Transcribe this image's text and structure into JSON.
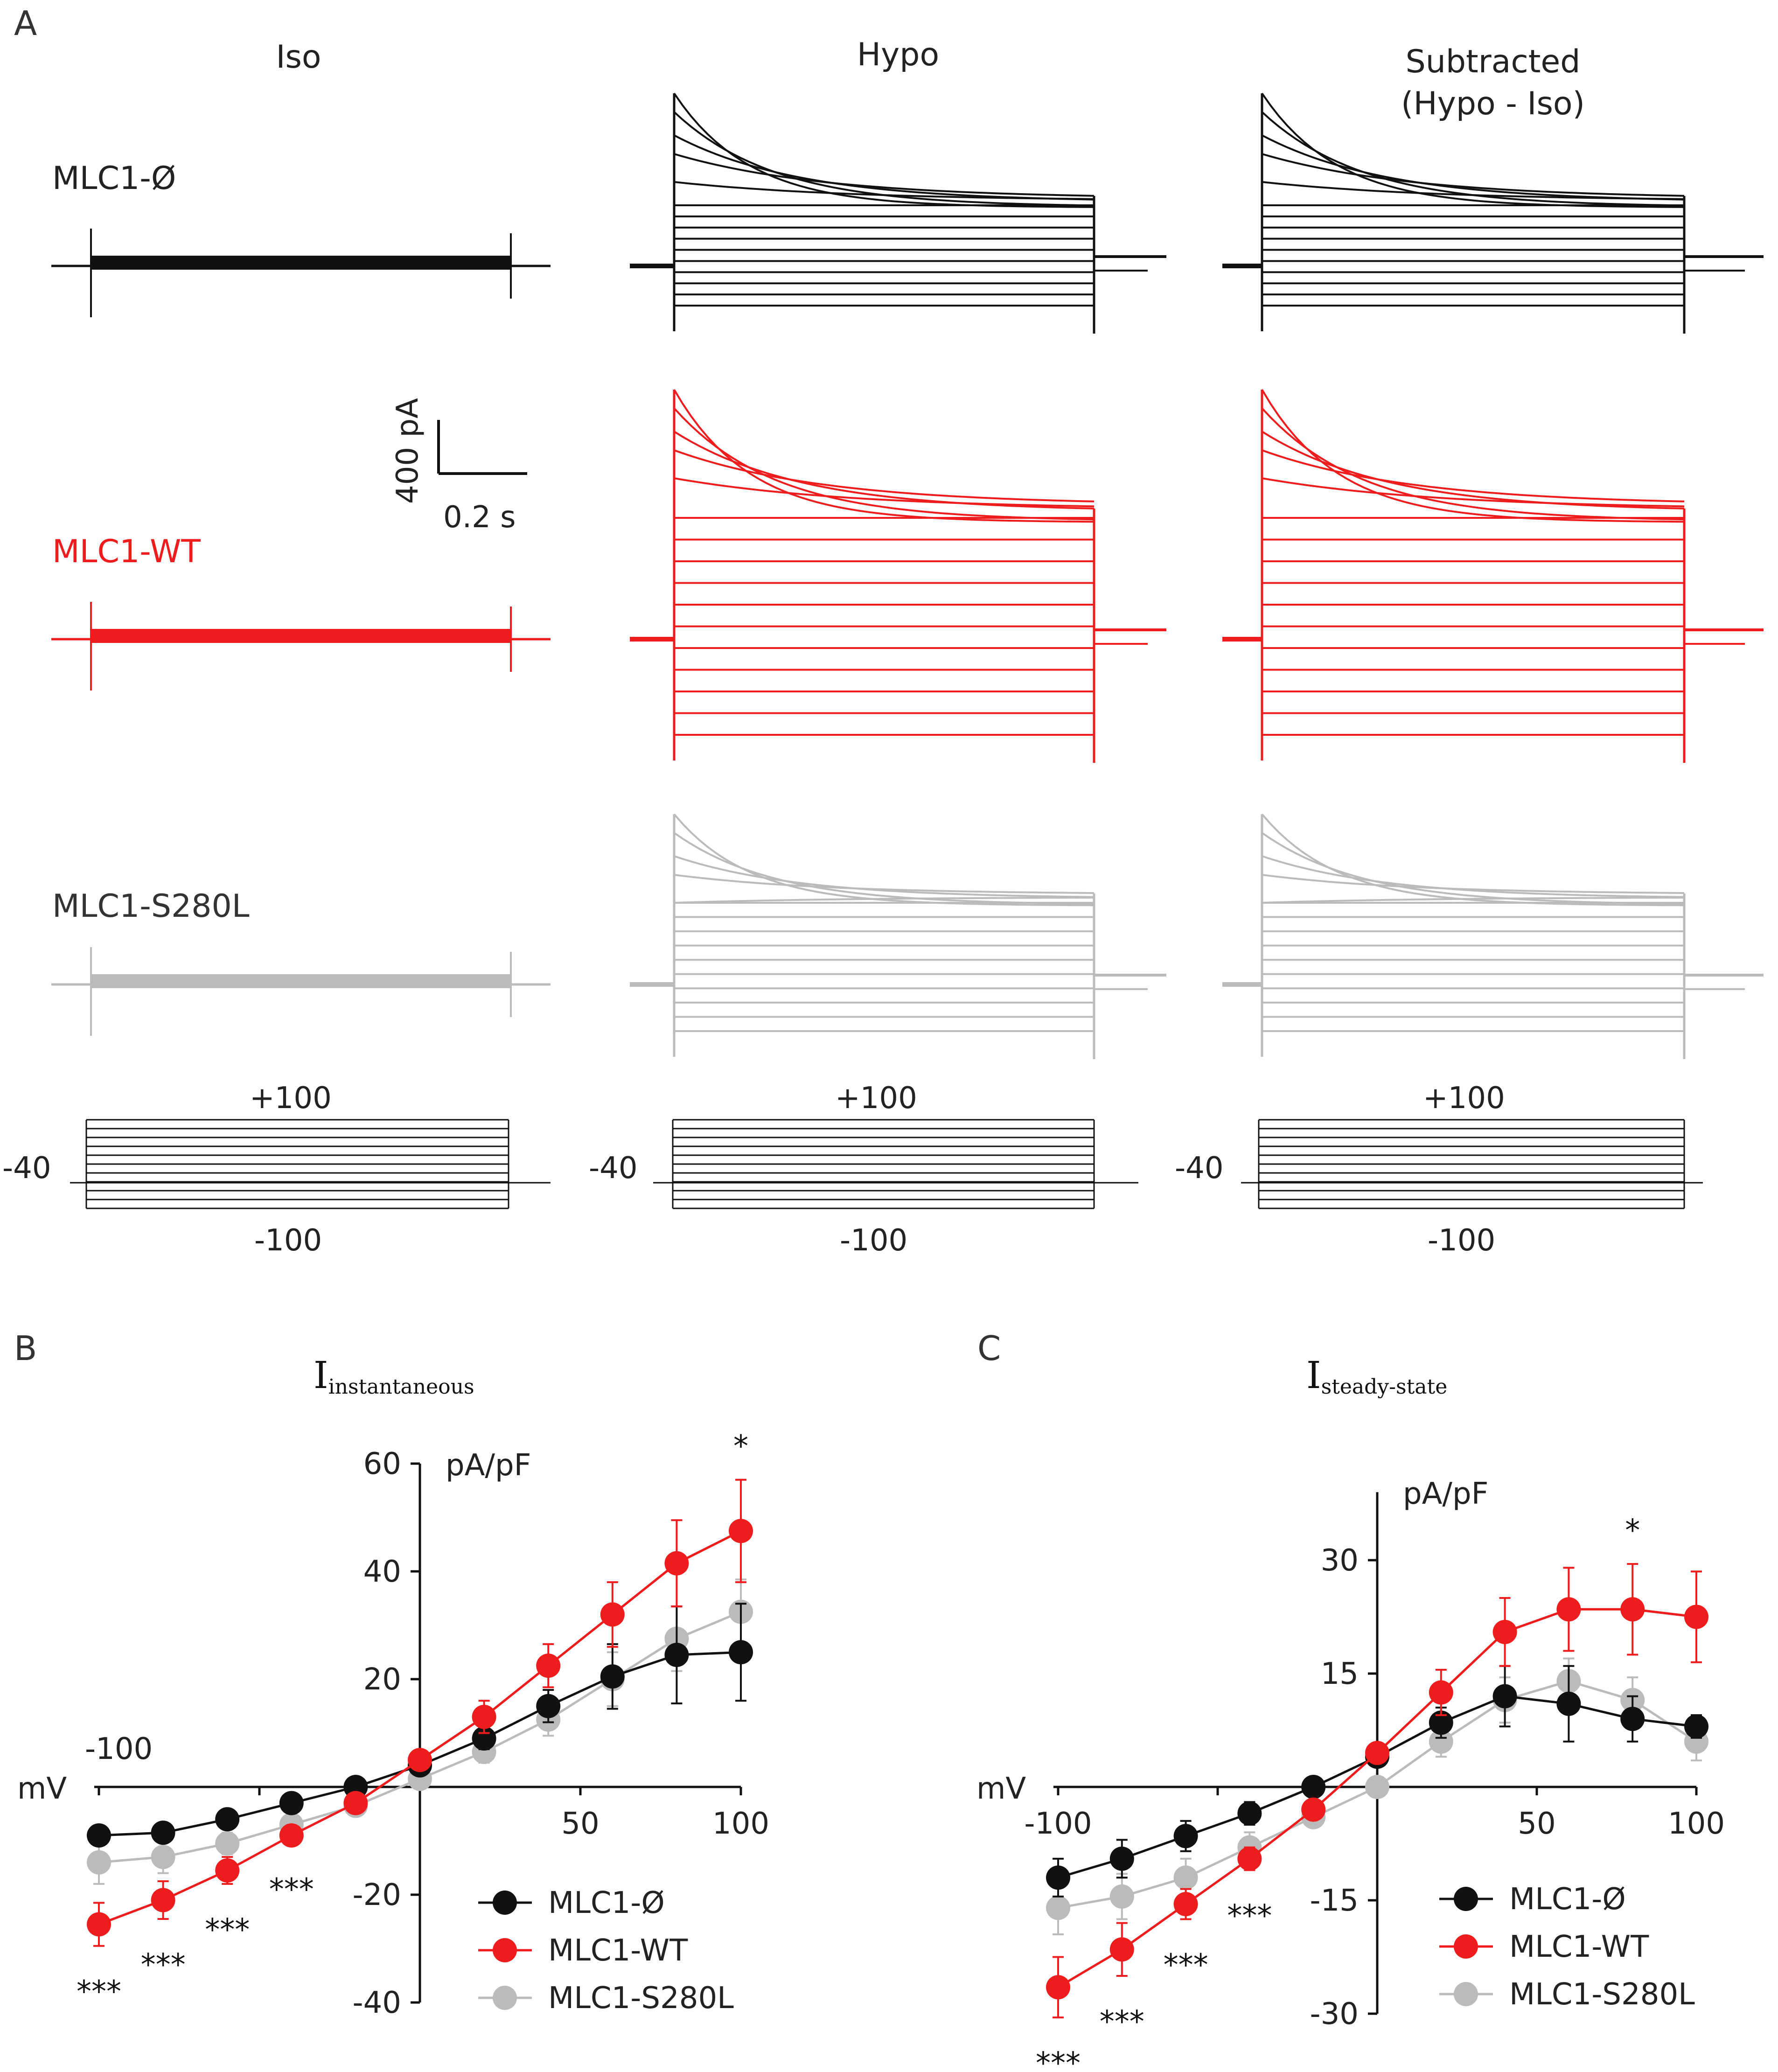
{
  "panels": {
    "A": "A",
    "B": "B",
    "C": "C"
  },
  "columns": [
    "Iso",
    "Hypo",
    "Subtracted",
    "(Hypo - Iso)"
  ],
  "rows": [
    {
      "label": "MLC1-Ø",
      "color": "#111111"
    },
    {
      "label": "MLC1-WT",
      "color": "#ee1c1c"
    },
    {
      "label": "MLC1-S280L",
      "color": "#bbbbbb"
    }
  ],
  "scale_bar": {
    "current": "400 pA",
    "time": "0.2 s"
  },
  "protocol": {
    "top": "+100",
    "bottom": "-100",
    "hold": "-40"
  },
  "colors": {
    "black": "#111111",
    "red": "#ee1c1c",
    "gray": "#bbbbbb"
  },
  "chart_data": [
    {
      "type": "line",
      "title": "I",
      "subtitle": "instantaneous",
      "ylabel": "pA/pF",
      "xlabel": "mV",
      "x_axis_label": "-100",
      "xlim": [
        -100,
        100
      ],
      "ylim": [
        -40,
        60
      ],
      "xticks": [
        50,
        100
      ],
      "yticks": [
        60,
        40,
        20,
        -20,
        -40
      ],
      "x": [
        -100,
        -80,
        -60,
        -40,
        -20,
        0,
        20,
        40,
        60,
        80,
        100
      ],
      "series": [
        {
          "name": "MLC1-Ø",
          "color": "#111111",
          "values": [
            -9,
            -8.5,
            -6,
            -3,
            0,
            4,
            9,
            15,
            20.5,
            24.5,
            25
          ],
          "err": [
            1.5,
            1.5,
            1.5,
            1.5,
            1,
            1,
            2,
            3,
            6,
            9,
            9
          ]
        },
        {
          "name": "MLC1-WT",
          "color": "#ee1c1c",
          "values": [
            -25.5,
            -21,
            -15.5,
            -9,
            -3,
            5,
            13,
            22.5,
            32,
            41.5,
            47.5
          ],
          "err": [
            4,
            3.5,
            2.5,
            1.5,
            1,
            1,
            3,
            4,
            6,
            8,
            9.5
          ]
        },
        {
          "name": "MLC1-S280L",
          "color": "#bbbbbb",
          "values": [
            -14,
            -13,
            -10.5,
            -7,
            -3.5,
            1.5,
            6.5,
            12.5,
            20,
            27.5,
            32.5
          ],
          "err": [
            4,
            3,
            2,
            1.5,
            1,
            1,
            2,
            3,
            5,
            6,
            6
          ]
        }
      ],
      "annotations": [
        {
          "x": -100,
          "text": "***"
        },
        {
          "x": -80,
          "text": "***"
        },
        {
          "x": -60,
          "text": "***"
        },
        {
          "x": -40,
          "text": "***"
        },
        {
          "x": 100,
          "text": "*"
        }
      ],
      "legend": "bottom-right"
    },
    {
      "type": "line",
      "title": "I",
      "subtitle": "steady-state",
      "ylabel": "pA/pF",
      "xlabel": "mV",
      "x_axis_label": "-100",
      "xlim": [
        -100,
        100
      ],
      "ylim": [
        -30,
        39
      ],
      "xticks": [
        50,
        100
      ],
      "yticks": [
        30,
        15,
        -15,
        -30
      ],
      "x": [
        -100,
        -80,
        -60,
        -40,
        -20,
        0,
        20,
        40,
        60,
        80,
        100
      ],
      "series": [
        {
          "name": "MLC1-Ø",
          "color": "#111111",
          "values": [
            -12,
            -9.5,
            -6.5,
            -3.5,
            0,
            4,
            8.5,
            12,
            11,
            9,
            8
          ],
          "err": [
            2.5,
            2.5,
            2,
            1.5,
            1,
            1,
            2,
            4,
            5,
            3,
            1.5
          ]
        },
        {
          "name": "MLC1-WT",
          "color": "#ee1c1c",
          "values": [
            -26.5,
            -21.5,
            -15.5,
            -9.5,
            -3,
            4.5,
            12.5,
            20.5,
            23.5,
            23.5,
            22.5
          ],
          "err": [
            4,
            3.5,
            2,
            1.5,
            1,
            1,
            3,
            4.5,
            5.5,
            6,
            6
          ]
        },
        {
          "name": "MLC1-S280L",
          "color": "#bbbbbb",
          "values": [
            -16,
            -14.5,
            -12,
            -8,
            -4,
            0,
            6,
            11.5,
            14,
            11.5,
            6
          ],
          "err": [
            3.5,
            3,
            2.5,
            2,
            1,
            1,
            2,
            3,
            3,
            3,
            2.5
          ]
        }
      ],
      "annotations": [
        {
          "x": -100,
          "text": "***"
        },
        {
          "x": -80,
          "text": "***"
        },
        {
          "x": -60,
          "text": "***"
        },
        {
          "x": -40,
          "text": "***"
        },
        {
          "x": 80,
          "text": "*"
        }
      ],
      "legend": "bottom-right"
    }
  ]
}
